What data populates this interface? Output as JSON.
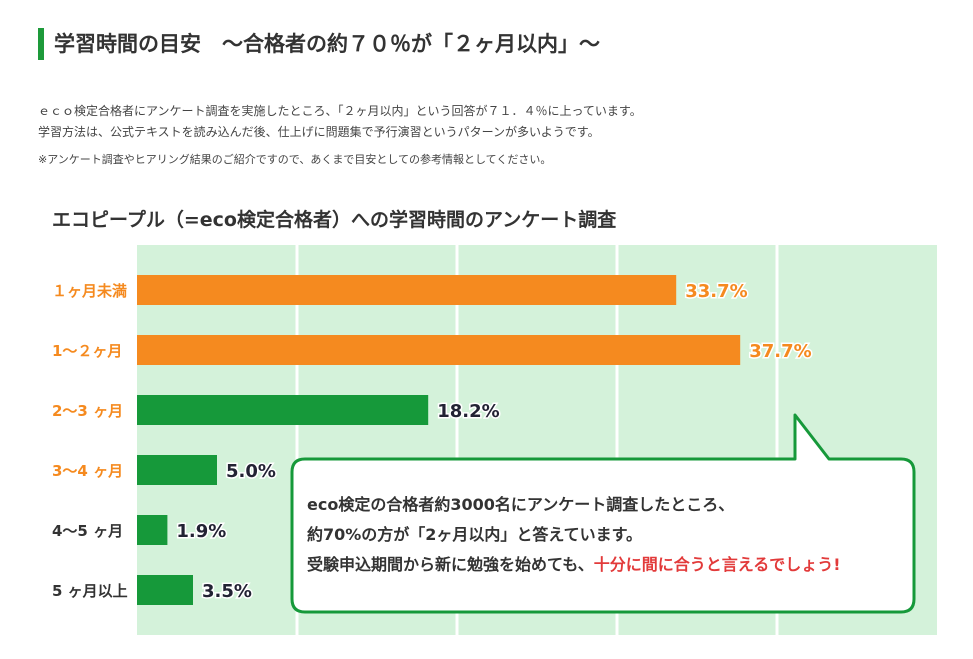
{
  "header": {
    "title": "学習時間の目安　～合格者の約７０％が「２ヶ月以内」～"
  },
  "intro": {
    "line1": "ｅｃｏ検定合格者にアンケート調査を実施したところ、「２ヶ月以内」という回答が７１．４％に上っています。",
    "line2": "学習方法は、公式テキストを読み込んだ後、仕上げに問題集で予行演習というパターンが多いようです。",
    "note": "※アンケート調査やヒアリング結果のご紹介ですので、あくまで目安としての参考情報としてください。"
  },
  "chart_data": {
    "type": "bar",
    "orientation": "horizontal",
    "title": "エコピープル（=eco検定合格者）への学習時間のアンケート調査",
    "categories": [
      "１ヶ月未満",
      "1～２ヶ月",
      "2～3 ヶ月",
      "3～4 ヶ月",
      "4～5 ヶ月",
      "5 ヶ月以上"
    ],
    "values": [
      33.7,
      37.7,
      18.2,
      5.0,
      1.9,
      3.5
    ],
    "value_labels": [
      "33.7%",
      "37.7%",
      "18.2%",
      "5.0%",
      "1.9%",
      "3.5%"
    ],
    "xlim": [
      0,
      50
    ],
    "grid": true,
    "legend": "none",
    "colors": {
      "highlight_bar": "#f58a1f",
      "default_bar": "#16993a",
      "highlight_label": "#f58a1f",
      "default_label": "#333333",
      "plot_bg": "#d4f2da"
    },
    "bar_colors": [
      "#f58a1f",
      "#f58a1f",
      "#16993a",
      "#16993a",
      "#16993a",
      "#16993a"
    ],
    "label_colors": [
      "#f58a1f",
      "#f58a1f",
      "#f58a1f",
      "#f58a1f",
      "#333333",
      "#333333"
    ]
  },
  "callout": {
    "line1": "eco検定の合格者約3000名にアンケート調査したところ、",
    "line2": "約70%の方が「2ヶ月以内」と答えています。",
    "line3_prefix": "受験申込期間から新に勉強を始めても、",
    "line3_highlight": "十分に間に合うと言えるでしょう!",
    "border_color": "#16993a",
    "highlight_color": "#e23a3a"
  }
}
